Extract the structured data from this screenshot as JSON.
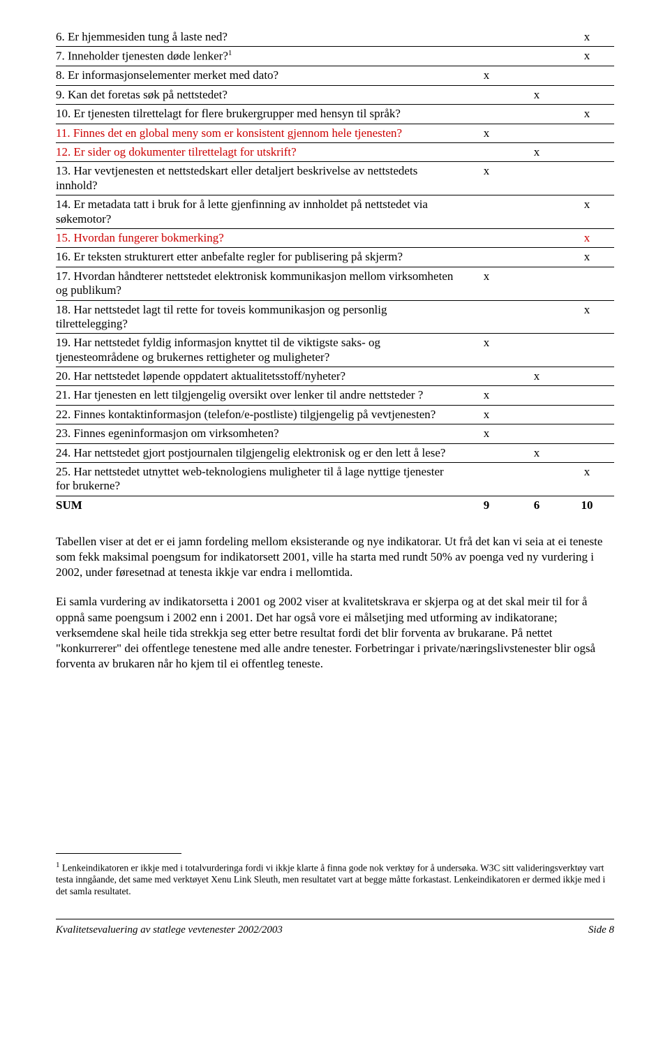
{
  "table": {
    "rows": [
      {
        "text": "6. Er hjemmesiden tung å laste ned?",
        "red": false,
        "sup": "",
        "c1": "",
        "c2": "",
        "c3": "x"
      },
      {
        "text": "7. Inneholder tjenesten døde lenker?",
        "red": false,
        "sup": "1",
        "c1": "",
        "c2": "",
        "c3": "x"
      },
      {
        "text": "8. Er informasjonselementer merket med dato?",
        "red": false,
        "sup": "",
        "c1": "x",
        "c2": "",
        "c3": ""
      },
      {
        "text": "9. Kan det foretas søk på nettstedet?",
        "red": false,
        "sup": "",
        "c1": "",
        "c2": "x",
        "c3": ""
      },
      {
        "text": "10. Er tjenesten tilrettelagt for flere brukergrupper med hensyn til språk?",
        "red": false,
        "sup": "",
        "c1": "",
        "c2": "",
        "c3": "x"
      },
      {
        "text": "11. Finnes det en global meny som er konsistent gjennom hele tjenesten?",
        "red": true,
        "sup": "",
        "c1": "x",
        "c2": "",
        "c3": ""
      },
      {
        "text": "12. Er sider og dokumenter tilrettelagt for utskrift?",
        "red": true,
        "sup": "",
        "c1": "",
        "c2": "x",
        "c3": ""
      },
      {
        "text": "13. Har vevtjenesten et nettstedskart eller detaljert beskrivelse av nettstedets innhold?",
        "red": false,
        "sup": "",
        "c1": "x",
        "c2": "",
        "c3": ""
      },
      {
        "text": "14. Er metadata tatt i bruk for å lette gjenfinning av innholdet på nettstedet via søkemotor?",
        "red": false,
        "sup": "",
        "c1": "",
        "c2": "",
        "c3": "x"
      },
      {
        "text": "15. Hvordan fungerer bokmerking?",
        "red": true,
        "sup": "",
        "c1": "",
        "c2": "",
        "c3": "x",
        "c3red": true
      },
      {
        "text": "16. Er teksten strukturert etter anbefalte regler for publisering på skjerm?",
        "red": false,
        "sup": "",
        "c1": "",
        "c2": "",
        "c3": "x"
      },
      {
        "text": "17. Hvordan håndterer nettstedet elektronisk kommunikasjon mellom virksomheten og publikum?",
        "red": false,
        "sup": "",
        "c1": "x",
        "c2": "",
        "c3": ""
      },
      {
        "text": "18. Har nettstedet lagt til rette for toveis kommunikasjon og personlig tilrettelegging?",
        "red": false,
        "sup": "",
        "c1": "",
        "c2": "",
        "c3": "x"
      },
      {
        "text": "19. Har nettstedet fyldig informasjon knyttet til de viktigste saks- og tjenesteområdene og brukernes rettigheter og muligheter?",
        "red": false,
        "sup": "",
        "c1": "x",
        "c2": "",
        "c3": ""
      },
      {
        "text": "20. Har nettstedet løpende oppdatert aktualitetsstoff/nyheter?",
        "red": false,
        "sup": "",
        "c1": "",
        "c2": "x",
        "c3": ""
      },
      {
        "text": "21. Har tjenesten en lett tilgjengelig oversikt  over lenker til andre nettsteder ?",
        "red": false,
        "sup": "",
        "c1": "x",
        "c2": "",
        "c3": ""
      },
      {
        "text": "22. Finnes kontaktinformasjon (telefon/e-postliste) tilgjengelig på vevtjenesten?",
        "red": false,
        "sup": "",
        "c1": "x",
        "c2": "",
        "c3": ""
      },
      {
        "text": "23. Finnes egeninformasjon om virksomheten?",
        "red": false,
        "sup": "",
        "c1": "x",
        "c2": "",
        "c3": ""
      },
      {
        "text": "24. Har nettstedet gjort postjournalen tilgjengelig elektronisk og er den lett å lese?",
        "red": false,
        "sup": "",
        "c1": "",
        "c2": "x",
        "c3": ""
      },
      {
        "text": "25. Har nettstedet utnyttet web-teknologiens muligheter til å lage nyttige tjenester for brukerne?",
        "red": false,
        "sup": "",
        "c1": "",
        "c2": "",
        "c3": "x"
      }
    ],
    "sum_label": "SUM",
    "sum_c1": "9",
    "sum_c2": "6",
    "sum_c3": "10"
  },
  "paragraphs": {
    "p1": "Tabellen viser at det er ei jamn fordeling mellom eksisterande og nye indikatorar. Ut frå det kan vi seia at ei teneste som fekk maksimal poengsum for indikatorsett 2001, ville ha starta med rundt 50% av poenga ved ny vurdering i 2002, under føresetnad at tenesta ikkje var endra i mellomtida.",
    "p2": "Ei samla vurdering av indikatorsetta i 2001 og 2002 viser at kvalitetskrava er skjerpa og at det skal meir til for å oppnå same poengsum i 2002 enn i 2001. Det har også vore ei målsetjing med utforming av indikatorane; verksemdene skal heile tida strekkja seg etter betre resultat fordi det blir forventa av brukarane. På nettet \"konkurrerer\" dei offentlege tenestene med alle andre tenester. Forbetringar i private/næringslivstenester blir også forventa av brukaren når ho kjem til ei offentleg teneste."
  },
  "footnote": {
    "marker": "1",
    "text": " Lenkeindikatoren er ikkje med i totalvurderinga fordi vi ikkje klarte å finna gode nok verktøy for å undersøka. W3C sitt valideringsverktøy vart testa inngåande, det same med verktøyet Xenu Link Sleuth, men resultatet vart at begge måtte forkastast. Lenkeindikatoren er dermed ikkje med i det samla resultatet."
  },
  "footer": {
    "left": "Kvalitetsevaluering av statlege vevtenester 2002/2003",
    "right": "Side 8"
  }
}
